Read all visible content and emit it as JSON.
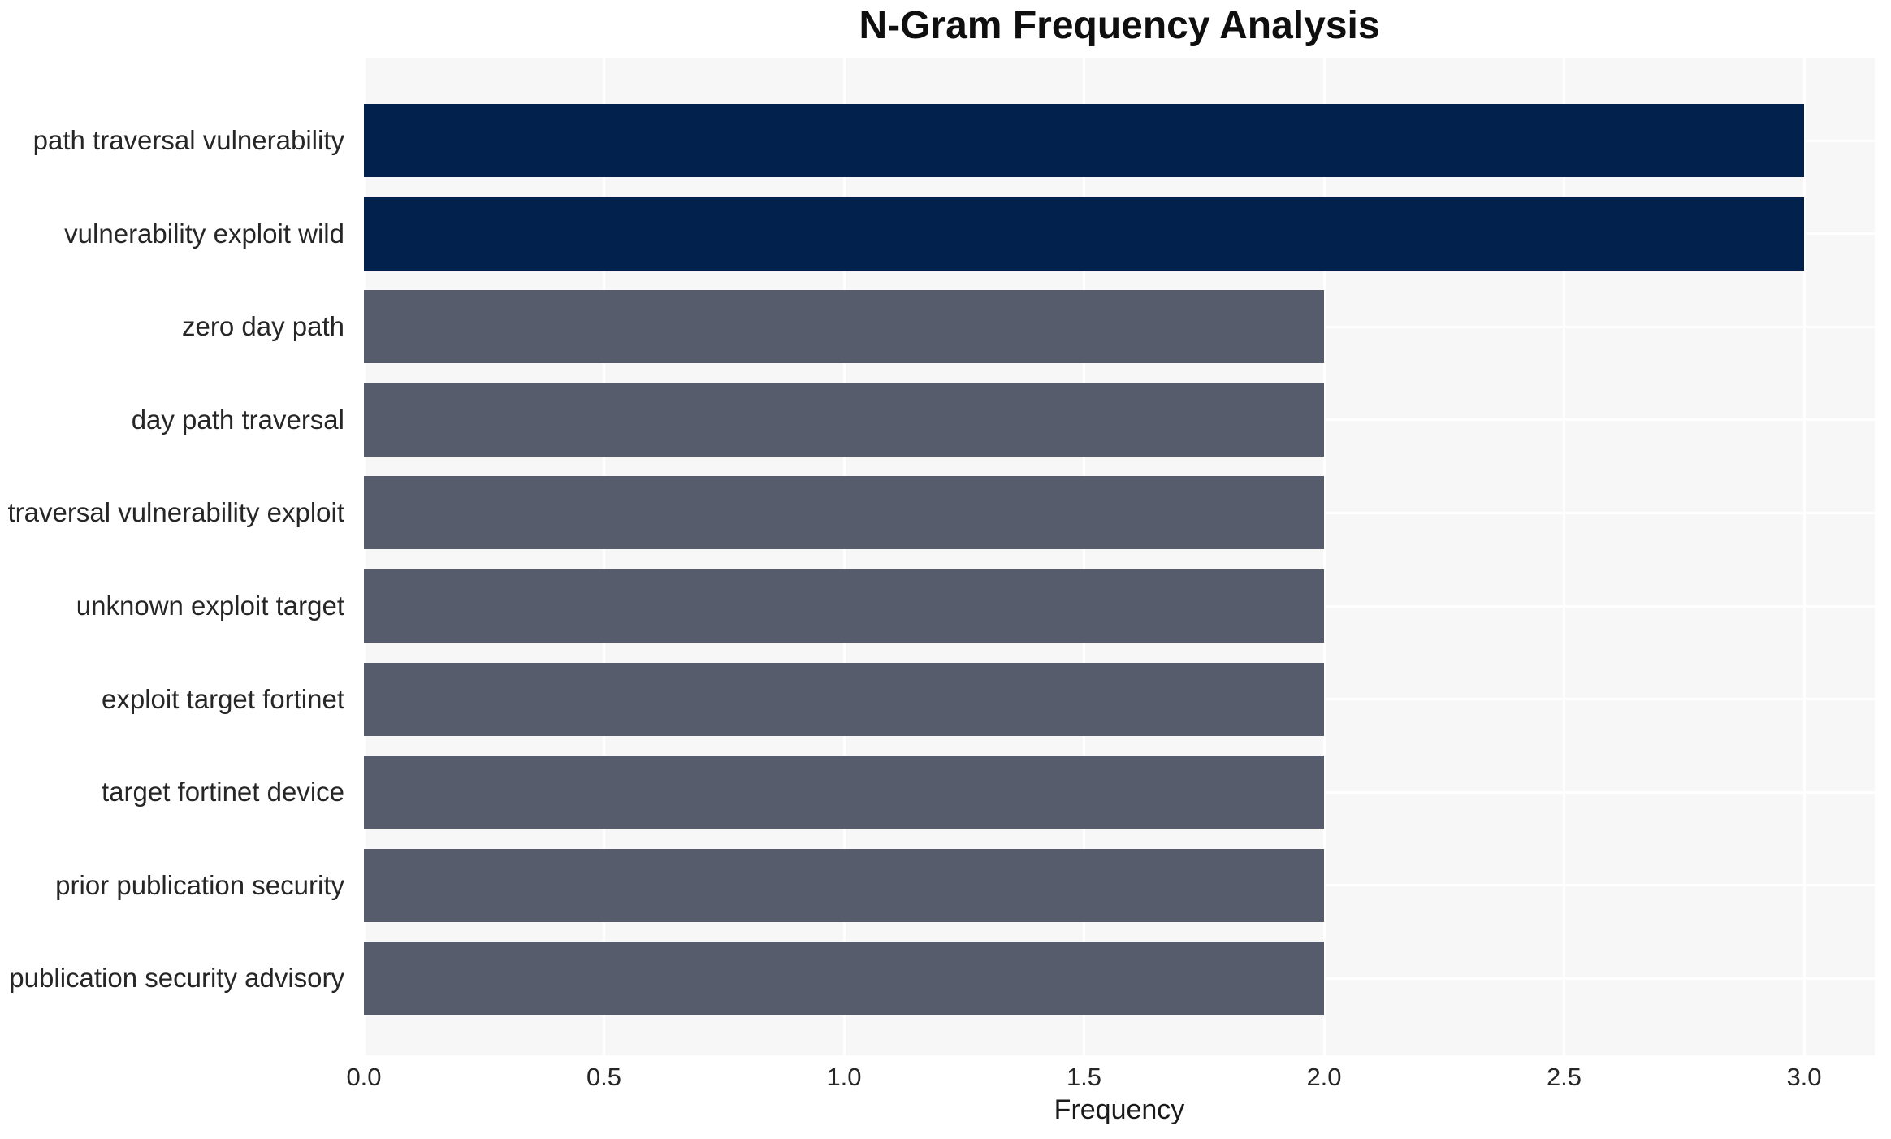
{
  "chart_data": {
    "type": "bar",
    "orientation": "horizontal",
    "title": "N-Gram Frequency Analysis",
    "xlabel": "Frequency",
    "ylabel": "",
    "categories": [
      "path traversal vulnerability",
      "vulnerability exploit wild",
      "zero day path",
      "day path traversal",
      "traversal vulnerability exploit",
      "unknown exploit target",
      "exploit target fortinet",
      "target fortinet device",
      "prior publication security",
      "publication security advisory"
    ],
    "values": [
      3,
      3,
      2,
      2,
      2,
      2,
      2,
      2,
      2,
      2
    ],
    "bar_colors": [
      "#02224d",
      "#02224d",
      "#565c6b",
      "#565c6b",
      "#565c6b",
      "#565c6b",
      "#565c6b",
      "#565c6b",
      "#565c6b",
      "#565c6b"
    ],
    "xlim": [
      0,
      3.15
    ],
    "xticks": {
      "values": [
        0,
        0.5,
        1.0,
        1.5,
        2.0,
        2.5,
        3.0
      ],
      "labels": [
        "0.0",
        "0.5",
        "1.0",
        "1.5",
        "2.0",
        "2.5",
        "3.0"
      ]
    },
    "grid": true,
    "legend": null,
    "colors": {
      "highlight_bar": "#02224d",
      "default_bar": "#565c6b",
      "plot_background": "#f7f7f8",
      "gridline": "#ffffff",
      "tick_text": "#262626",
      "title_text": "#0f0f0f"
    }
  }
}
